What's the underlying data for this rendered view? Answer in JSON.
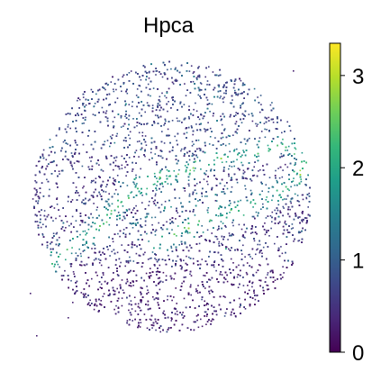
{
  "chart_data": {
    "type": "scatter",
    "title": "Hpca",
    "xlabel": "",
    "ylabel": "",
    "colorbar": {
      "colormap": "viridis",
      "range": [
        0,
        3.35
      ],
      "ticks": [
        0,
        1,
        2,
        3
      ],
      "tick_labels": [
        "0",
        "1",
        "2",
        "3"
      ],
      "colors": [
        "#440154",
        "#482878",
        "#3e4989",
        "#31688e",
        "#26828e",
        "#1f9e89",
        "#35b779",
        "#6ece58",
        "#b5de2b",
        "#fde725"
      ]
    },
    "spatial_expression": {
      "tissue_shape": "circular section",
      "background_level": 0.3,
      "lower_region_level": 0.15,
      "band": {
        "centerline": [
          [
            58,
            290
          ],
          [
            95,
            262
          ],
          [
            135,
            222
          ],
          [
            165,
            200
          ],
          [
            205,
            188
          ],
          [
            245,
            175
          ],
          [
            285,
            168
          ],
          [
            315,
            160
          ],
          [
            330,
            168
          ],
          [
            335,
            185
          ],
          [
            325,
            205
          ],
          [
            305,
            218
          ],
          [
            275,
            228
          ],
          [
            245,
            235
          ],
          [
            215,
            248
          ],
          [
            190,
            262
          ],
          [
            175,
            268
          ]
        ],
        "peak_level": 2.2
      },
      "inner_band": {
        "centerline": [
          [
            145,
            250
          ],
          [
            175,
            232
          ],
          [
            215,
            220
          ],
          [
            255,
            212
          ],
          [
            290,
            208
          ],
          [
            318,
            200
          ]
        ],
        "peak_level": 1.3
      },
      "upper_cortex_level": 0.9
    }
  }
}
